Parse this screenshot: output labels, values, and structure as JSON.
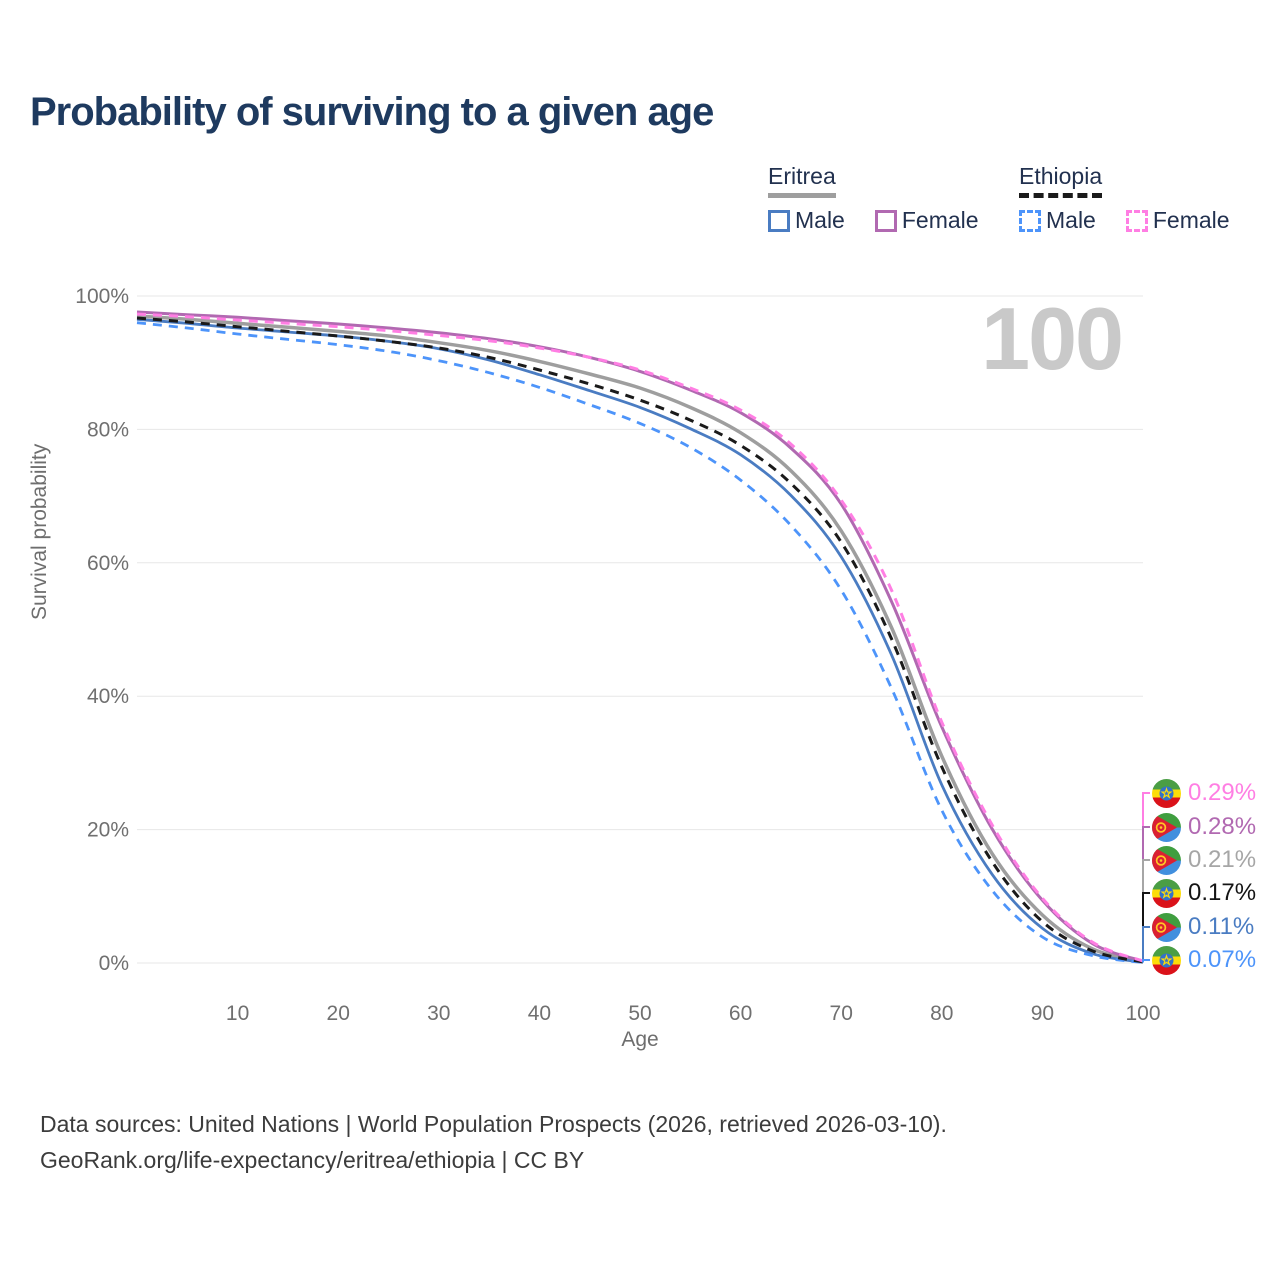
{
  "title": "Probability of surviving to a given age",
  "watermark": "100",
  "legend": {
    "groups": [
      {
        "label": "Eritrea",
        "line_style": "solid",
        "line_color": "#9e9e9e",
        "items": [
          {
            "label": "Male",
            "color": "#4a7cc2"
          },
          {
            "label": "Female",
            "color": "#b169b1"
          }
        ]
      },
      {
        "label": "Ethiopia",
        "line_style": "dashed",
        "line_color": "#1a1a1a",
        "items": [
          {
            "label": "Male",
            "color": "#4d94fa"
          },
          {
            "label": "Female",
            "color": "#ff7ee3"
          }
        ]
      }
    ]
  },
  "chart_data": {
    "type": "line",
    "title": "Probability of surviving to a given age",
    "xlabel": "Age",
    "ylabel": "Survival probability",
    "xlim": [
      0,
      100
    ],
    "ylim": [
      0,
      100
    ],
    "grid": "horizontal",
    "legend_position": "top-right",
    "x_ticks": [
      10,
      20,
      30,
      40,
      50,
      60,
      70,
      80,
      90,
      100
    ],
    "y_ticks": [
      {
        "value": 0,
        "label": "0%"
      },
      {
        "value": 20,
        "label": "20%"
      },
      {
        "value": 40,
        "label": "40%"
      },
      {
        "value": 60,
        "label": "60%"
      },
      {
        "value": 80,
        "label": "80%"
      },
      {
        "value": 100,
        "label": "100%"
      }
    ],
    "x": [
      0,
      5,
      10,
      15,
      20,
      25,
      30,
      35,
      40,
      45,
      50,
      55,
      60,
      65,
      70,
      75,
      80,
      85,
      90,
      95,
      100
    ],
    "series": [
      {
        "name": "Eritrea",
        "sex": "both",
        "style": "solid",
        "color": "#9e9e9e",
        "width": 3.5,
        "end_label": "0.21%",
        "values": [
          97.0,
          96.5,
          95.9,
          95.3,
          94.7,
          94.0,
          93.0,
          91.8,
          90.2,
          88.3,
          86.2,
          83.3,
          79.5,
          73.8,
          64.8,
          50.3,
          31.0,
          16.4,
          7.2,
          2.1,
          0.21
        ]
      },
      {
        "name": "Eritrea Male",
        "sex": "male",
        "style": "solid",
        "color": "#4a7cc2",
        "width": 2.8,
        "end_label": "0.11%",
        "values": [
          96.5,
          95.9,
          95.2,
          94.6,
          94.0,
          93.2,
          92.1,
          90.4,
          88.2,
          85.8,
          83.3,
          80.1,
          76.2,
          70.1,
          60.9,
          46.2,
          26.7,
          13.3,
          5.2,
          1.4,
          0.11
        ]
      },
      {
        "name": "Eritrea Female",
        "sex": "female",
        "style": "solid",
        "color": "#b169b1",
        "width": 3,
        "end_label": "0.28%",
        "values": [
          97.6,
          97.2,
          96.8,
          96.3,
          95.8,
          95.2,
          94.5,
          93.6,
          92.4,
          90.8,
          88.7,
          85.9,
          82.5,
          77.2,
          68.8,
          54.2,
          35.4,
          20.1,
          9.4,
          2.9,
          0.28
        ]
      },
      {
        "name": "Ethiopia Male",
        "sex": "male",
        "style": "dashed",
        "color": "#4d94fa",
        "width": 2.8,
        "end_label": "0.07%",
        "values": [
          96.0,
          95.2,
          94.3,
          93.5,
          92.7,
          91.7,
          90.3,
          88.5,
          86.3,
          83.7,
          80.9,
          77.3,
          72.4,
          65.6,
          55.9,
          41.2,
          22.9,
          10.9,
          3.9,
          1.1,
          0.07
        ]
      },
      {
        "name": "Ethiopia",
        "sex": "both",
        "style": "dashed",
        "color": "#1a1a1a",
        "width": 3,
        "end_label": "0.17%",
        "values": [
          96.7,
          96.1,
          95.4,
          94.7,
          94.0,
          93.2,
          92.2,
          90.8,
          88.9,
          86.8,
          84.4,
          81.4,
          77.6,
          71.9,
          63.1,
          48.6,
          29.4,
          15.2,
          6.2,
          1.8,
          0.17
        ]
      },
      {
        "name": "Ethiopia Female",
        "sex": "female",
        "style": "dashed",
        "color": "#ff7ee3",
        "width": 3,
        "end_label": "0.29%",
        "values": [
          97.3,
          96.9,
          96.4,
          95.9,
          95.4,
          94.8,
          94.1,
          93.3,
          92.2,
          90.8,
          88.9,
          86.2,
          82.9,
          77.8,
          69.4,
          55.9,
          36.1,
          20.7,
          9.7,
          3.1,
          0.29
        ]
      }
    ]
  },
  "end_labels": [
    {
      "series": "Ethiopia Female",
      "flag": "ethiopia",
      "value": "0.29%",
      "color": "#ff7ee3"
    },
    {
      "series": "Eritrea Female",
      "flag": "eritrea",
      "value": "0.28%",
      "color": "#b169b1"
    },
    {
      "series": "Eritrea",
      "flag": "eritrea",
      "value": "0.21%",
      "color": "#a6a6a6"
    },
    {
      "series": "Ethiopia",
      "flag": "ethiopia",
      "value": "0.17%",
      "color": "#141414"
    },
    {
      "series": "Eritrea Male",
      "flag": "eritrea",
      "value": "0.11%",
      "color": "#4a7cc2"
    },
    {
      "series": "Ethiopia Male",
      "flag": "ethiopia",
      "value": "0.07%",
      "color": "#4d94fa"
    }
  ],
  "footer": {
    "line1": "Data sources: United Nations | World Population Prospects (2026, retrieved 2026-03-10).",
    "line2": "GeoRank.org/life-expectancy/eritrea/ethiopia | CC BY"
  }
}
